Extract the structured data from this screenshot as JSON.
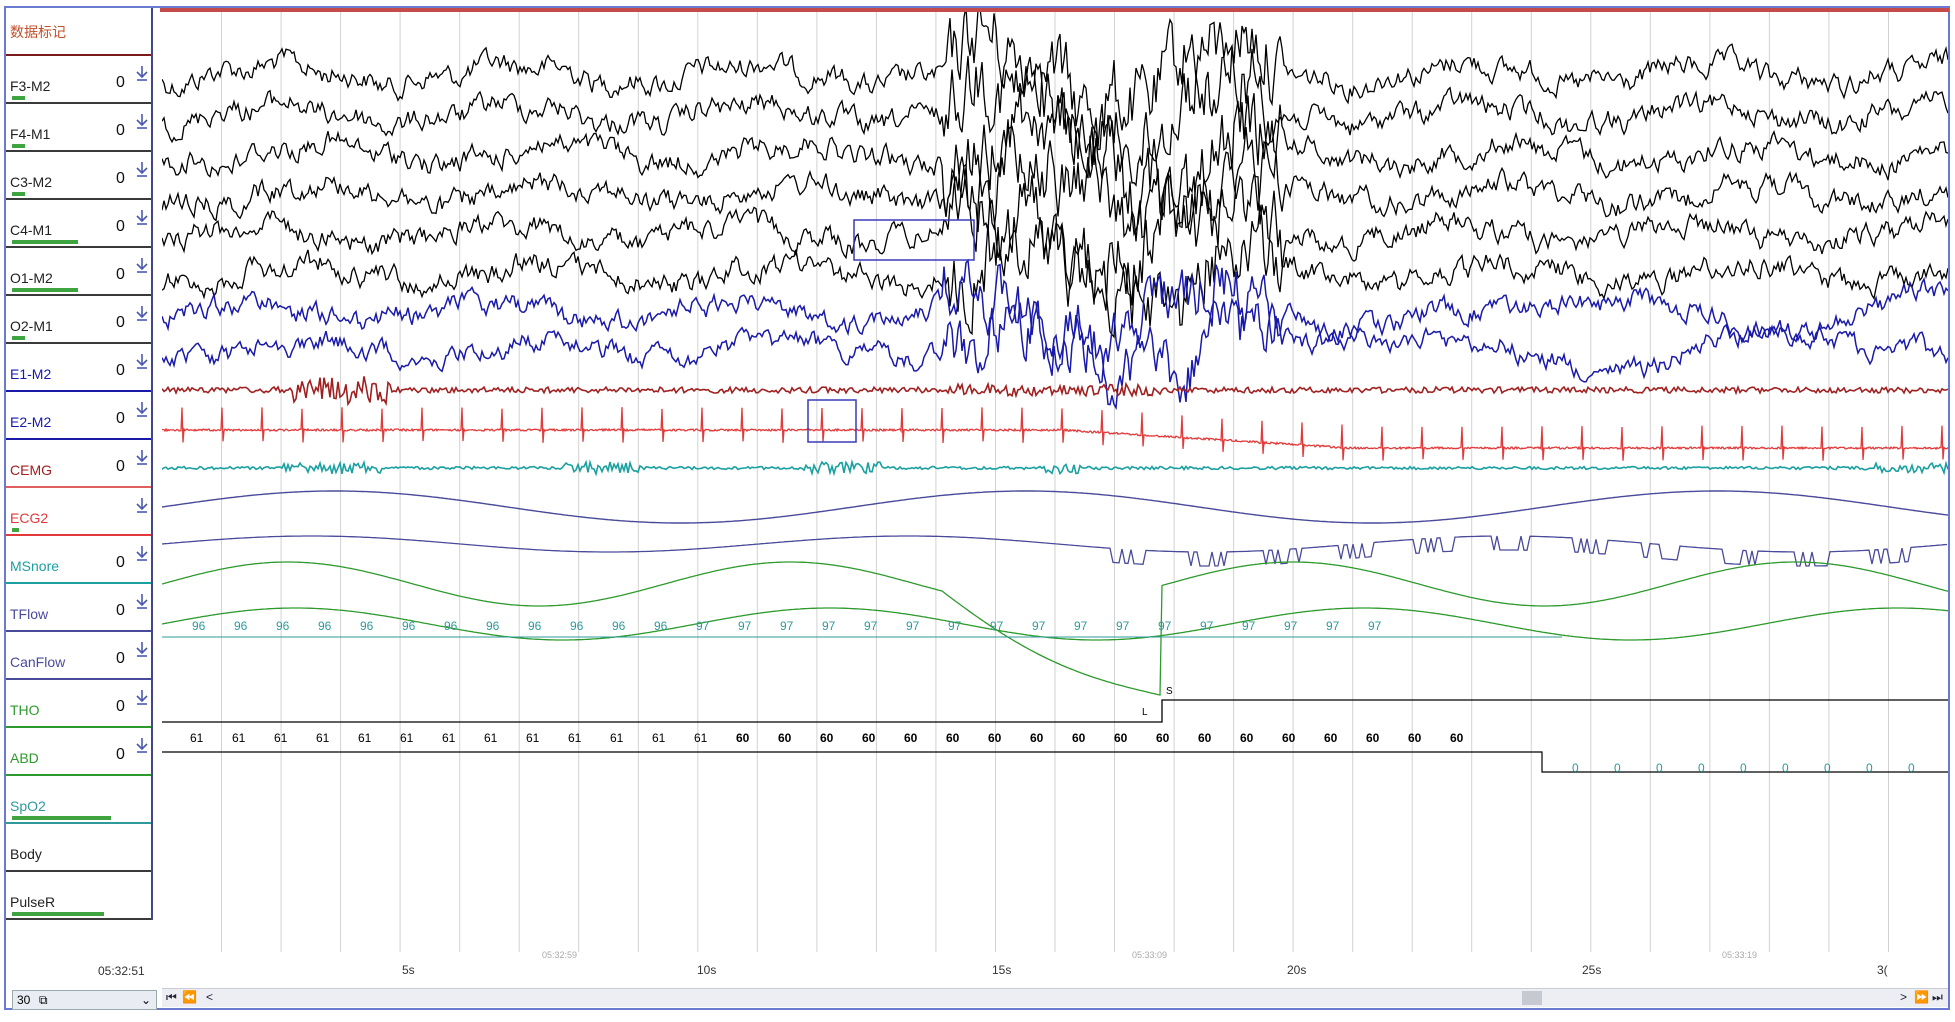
{
  "header": {
    "title": "数据标记"
  },
  "channels": [
    {
      "name": "F3-M2",
      "value": "0",
      "color": "#000000",
      "level": 0.1
    },
    {
      "name": "F4-M1",
      "value": "0",
      "color": "#000000",
      "level": 0.1
    },
    {
      "name": "C3-M2",
      "value": "0",
      "color": "#000000",
      "level": 0.1
    },
    {
      "name": "C4-M1",
      "value": "0",
      "color": "#000000",
      "level": 0.5
    },
    {
      "name": "O1-M2",
      "value": "0",
      "color": "#000000",
      "level": 0.5
    },
    {
      "name": "O2-M1",
      "value": "0",
      "color": "#000000",
      "level": 0.1
    },
    {
      "name": "E1-M2",
      "value": "0",
      "color": "#1a1aaa",
      "level": 0
    },
    {
      "name": "E2-M2",
      "value": "0",
      "color": "#1a1aaa",
      "level": 0
    },
    {
      "name": "CEMG",
      "value": "0",
      "color": "#a02020",
      "level": 0
    },
    {
      "name": "ECG2",
      "value": "",
      "color": "#e23a3a",
      "level": 0.05
    },
    {
      "name": "MSnore",
      "value": "0",
      "color": "#1aa0a0",
      "level": 0
    },
    {
      "name": "TFlow",
      "value": "0",
      "color": "#4a4a9a",
      "level": 0
    },
    {
      "name": "CanFlow",
      "value": "0",
      "color": "#4a4a9a",
      "level": 0
    },
    {
      "name": "THO",
      "value": "0",
      "color": "#2e9a2e",
      "level": 0
    },
    {
      "name": "ABD",
      "value": "0",
      "color": "#2e9a2e",
      "level": 0
    },
    {
      "name": "SpO2",
      "value": "",
      "color": "#2e9a9a",
      "level": 0.75
    },
    {
      "name": "Body",
      "value": "",
      "color": "#000000",
      "level": 0
    },
    {
      "name": "PulseR",
      "value": "",
      "color": "#000000",
      "level": 0.7
    }
  ],
  "footer": {
    "clock": "05:32:51",
    "zoom": "30",
    "axis_ticks": [
      "5s",
      "10s",
      "15s",
      "20s",
      "25s",
      "3("
    ],
    "time_marks": [
      "05:32:59",
      "05:33:09",
      "05:33:19"
    ]
  },
  "spo2_values": [
    "96",
    "96",
    "96",
    "96",
    "96",
    "96",
    "96",
    "96",
    "96",
    "96",
    "96",
    "96",
    "97",
    "97",
    "97",
    "97",
    "97",
    "97",
    "97",
    "97",
    "97",
    "97",
    "97",
    "97",
    "97",
    "97",
    "97",
    "97",
    "97"
  ],
  "pulse_values_a": [
    "61",
    "61",
    "61",
    "61",
    "61",
    "61",
    "61",
    "61",
    "61",
    "61",
    "61",
    "61",
    "61",
    "60",
    "60",
    "60",
    "60",
    "60",
    "60",
    "60",
    "60",
    "60",
    "60",
    "60",
    "60",
    "60",
    "60",
    "60",
    "60",
    "60",
    "60"
  ],
  "pulse_values_b": [
    "0",
    "0",
    "0",
    "0",
    "0",
    "0",
    "0",
    "0",
    "0"
  ],
  "annotations": {
    "body_left": "L",
    "body_supine": "S"
  },
  "scrollbar": {
    "left_buttons": [
      "⏮",
      "⏪",
      "<"
    ],
    "right_buttons": [
      ">",
      "⏩",
      "⏭"
    ]
  },
  "colors": {
    "frame": "#6a7ad0",
    "eeg": "#000000",
    "eog": "#1a1aaa",
    "emg": "#a02020",
    "ecg": "#e23a3a",
    "snore": "#1aa0a0",
    "flow": "#4a4a9a",
    "effort": "#2e9a2e",
    "spo2": "#2e9a9a",
    "grid": "#d2d2d2",
    "event_box": "#3a3aba"
  }
}
